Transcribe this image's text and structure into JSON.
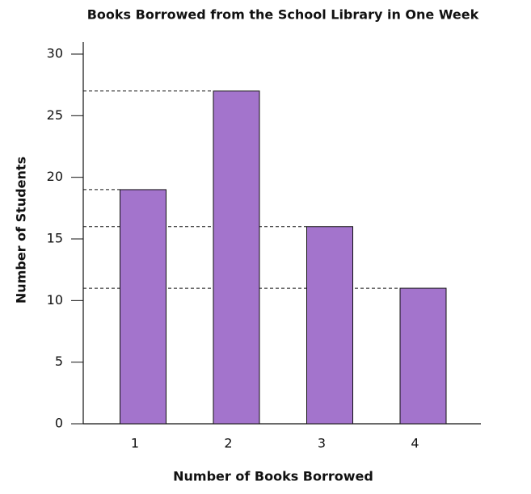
{
  "chart_data": {
    "type": "bar",
    "title": "Books Borrowed from the School Library in One Week",
    "x_label": "Number of Books Borrowed",
    "y_label": "Number of Students",
    "categories": [
      "1",
      "2",
      "3",
      "4"
    ],
    "values": [
      19,
      27,
      16,
      11
    ],
    "color": "#a374cc",
    "ylim": [
      0,
      30
    ],
    "yticks": [
      0,
      5,
      10,
      15,
      20,
      25,
      30
    ],
    "reference_lines": true
  }
}
